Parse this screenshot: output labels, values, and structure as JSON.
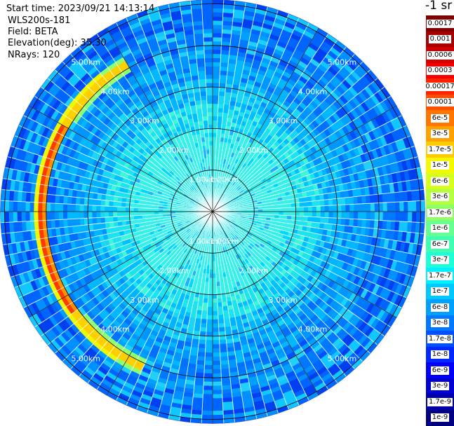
{
  "header": {
    "start_time": "Start time: 2023/09/21 14:13:14",
    "instrument": "WLS200s-181",
    "field": "Field: BETA",
    "elevation": "Elevation(deg): 35.30",
    "nrays": "NRays: 120"
  },
  "colorbar": {
    "unit": "-1 sr",
    "levels": [
      {
        "label": "0.0017",
        "color": "#7f0000"
      },
      {
        "label": "0.001",
        "color": "#a80000"
      },
      {
        "label": "0.0006",
        "color": "#d20000"
      },
      {
        "label": "0.0003",
        "color": "#f60000"
      },
      {
        "label": "0.00017",
        "color": "#ff2400"
      },
      {
        "label": "0.0001",
        "color": "#ff4e00"
      },
      {
        "label": "6e-5",
        "color": "#ff7700"
      },
      {
        "label": "3e-5",
        "color": "#ffa100"
      },
      {
        "label": "1.7e-5",
        "color": "#ffcb00"
      },
      {
        "label": "1e-5",
        "color": "#f4f800"
      },
      {
        "label": "6e-6",
        "color": "#d6ff1d"
      },
      {
        "label": "3e-6",
        "color": "#b3ff40"
      },
      {
        "label": "1.7e-6",
        "color": "#90ff66"
      },
      {
        "label": "1e-6",
        "color": "#66ff90"
      },
      {
        "label": "6e-7",
        "color": "#40ffb3"
      },
      {
        "label": "3e-7",
        "color": "#1dffd6"
      },
      {
        "label": "1.7e-7",
        "color": "#00f0ff"
      },
      {
        "label": "1e-7",
        "color": "#00c8ff"
      },
      {
        "label": "6e-8",
        "color": "#00a0ff"
      },
      {
        "label": "3e-8",
        "color": "#0078ff"
      },
      {
        "label": "1.7e-8",
        "color": "#0050ff"
      },
      {
        "label": "1e-8",
        "color": "#0028ff"
      },
      {
        "label": "6e-9",
        "color": "#0000fa"
      },
      {
        "label": "3e-9",
        "color": "#0000d2"
      },
      {
        "label": "1.7e-9",
        "color": "#0000a8"
      },
      {
        "label": "1e-9",
        "color": "#000080"
      }
    ]
  },
  "chart_data": {
    "type": "heatmap",
    "projection": "polar (PPI scan)",
    "field": "BETA",
    "rays": 120,
    "range_rings_km": [
      1,
      2,
      3,
      4,
      5
    ],
    "range_ring_labels": [
      "1.00km",
      "2.00km",
      "3.00km",
      "4.00km",
      "5.00km"
    ],
    "max_range_km": 5.1,
    "spoke_angles_deg": [
      0,
      30,
      60,
      90,
      120,
      150,
      180,
      210,
      240,
      270,
      300,
      330
    ],
    "value_by_range": [
      {
        "range_km": [
          0.0,
          2.0
        ],
        "beta": "1.7e-7 to 3e-7"
      },
      {
        "range_km": [
          2.0,
          3.0
        ],
        "beta": "1e-7 to 1.7e-7"
      },
      {
        "range_km": [
          3.0,
          4.0
        ],
        "beta": "6e-8 to 1e-7"
      },
      {
        "range_km": [
          4.0,
          5.1
        ],
        "beta": "1.7e-8 to 6e-8"
      }
    ],
    "cloud_echo": {
      "range_km": [
        3.9,
        4.3
      ],
      "azimuth_deg": [
        205,
        330
      ],
      "beta": "1.7e-5 to 1e-4"
    },
    "grid": true
  }
}
